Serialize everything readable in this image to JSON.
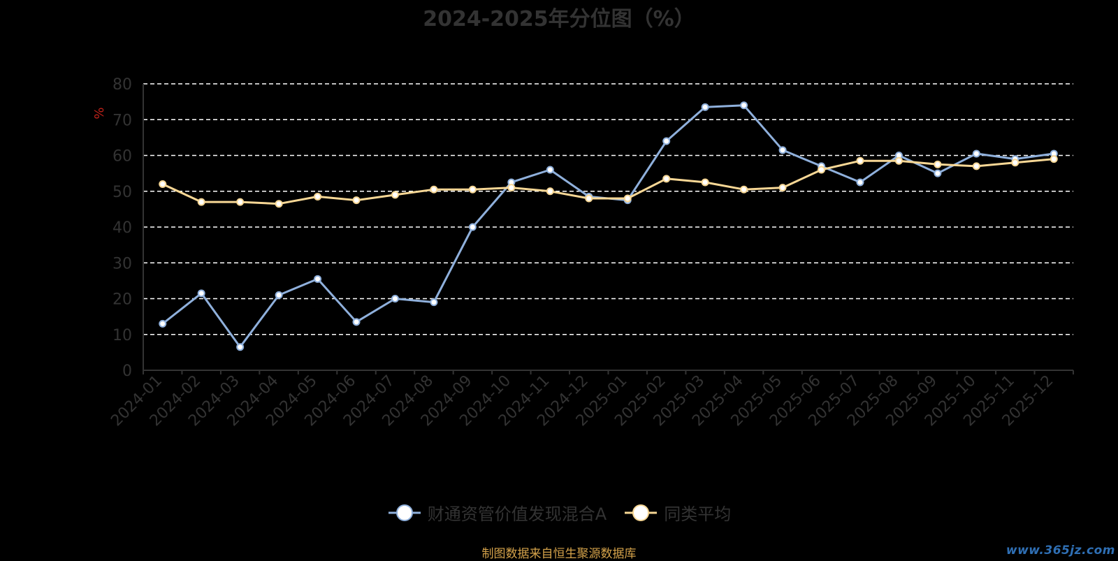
{
  "chart_data": {
    "type": "line",
    "title": "2024-2025年分位图（%）",
    "ylabel": "%",
    "xlabel": "",
    "ylim": [
      0,
      80
    ],
    "yticks": [
      0,
      10,
      20,
      30,
      40,
      50,
      60,
      70,
      80
    ],
    "grid": true,
    "legend_position": "bottom",
    "categories": [
      "2024-01",
      "2024-02",
      "2024-03",
      "2024-04",
      "2024-05",
      "2024-06",
      "2024-07",
      "2024-08",
      "2024-09",
      "2024-10",
      "2024-11",
      "2024-12",
      "2025-01",
      "2025-02",
      "2025-03",
      "2025-04",
      "2025-05",
      "2025-06",
      "2025-07",
      "2025-08",
      "2025-09",
      "2025-10",
      "2025-11",
      "2025-12"
    ],
    "series": [
      {
        "name": "财通资管价值发现混合A",
        "color": "#8fb0dc",
        "values": [
          13.0,
          21.5,
          6.5,
          21.0,
          25.5,
          13.5,
          20.0,
          19.0,
          40.0,
          52.5,
          56.0,
          48.5,
          47.5,
          64.0,
          73.5,
          74.0,
          61.5,
          57.0,
          52.5,
          60.0,
          55.0,
          60.5,
          59.0,
          60.5
        ]
      },
      {
        "name": "同类平均",
        "color": "#f7d795",
        "values": [
          52.0,
          47.0,
          47.0,
          46.5,
          48.5,
          47.5,
          49.0,
          50.5,
          50.5,
          51.0,
          50.0,
          48.0,
          48.0,
          53.5,
          52.5,
          50.5,
          51.0,
          56.0,
          58.5,
          58.5,
          57.5,
          57.0,
          58.0,
          59.0
        ]
      }
    ]
  },
  "footer": {
    "note": "制图数据来自恒生聚源数据库"
  },
  "watermark": {
    "text": "www.365jz.com"
  },
  "colors": {
    "background": "#000000",
    "grid": "#ffffff",
    "axis_text": "#333333",
    "ylabel": "#c0221a"
  }
}
